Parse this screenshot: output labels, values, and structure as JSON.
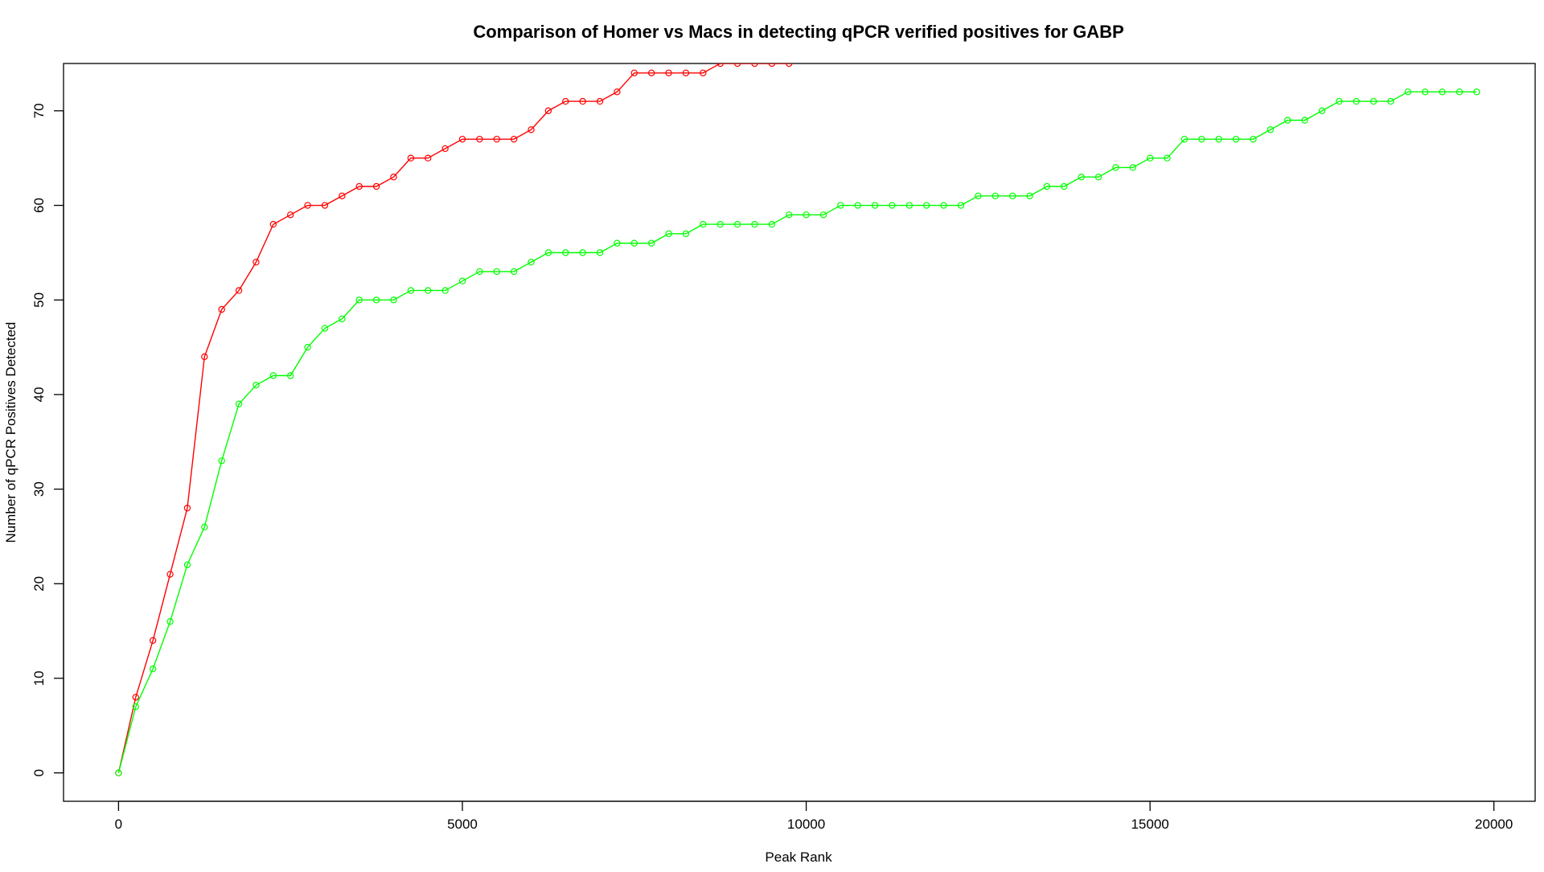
{
  "chart_data": {
    "type": "line",
    "title": "Comparison of Homer vs Macs in detecting qPCR verified positives for GABP",
    "xlabel": "Peak Rank",
    "ylabel": "Number of qPCR Positives Detected",
    "xlim": [
      -800,
      20600
    ],
    "ylim": [
      -3,
      75
    ],
    "x_ticks": [
      0,
      5000,
      10000,
      15000,
      20000
    ],
    "y_ticks": [
      0,
      10,
      20,
      30,
      40,
      50,
      60,
      70
    ],
    "grid": false,
    "legend": "none",
    "colors": [
      "#ff0000",
      "#00ff00"
    ],
    "series": [
      {
        "color": "#ff0000",
        "x": [
          0,
          250,
          500,
          750,
          1000,
          1250,
          1500,
          1750,
          2000,
          2250,
          2500,
          2750,
          3000,
          3250,
          3500,
          3750,
          4000,
          4250,
          4500,
          4750,
          5000,
          5250,
          5500,
          5750,
          6000,
          6250,
          6500,
          6750,
          7000,
          7250,
          7500,
          7750,
          8000,
          8250,
          8500,
          8750,
          9000,
          9250,
          9500,
          9750
        ],
        "y": [
          0,
          8,
          14,
          21,
          28,
          44,
          49,
          51,
          54,
          58,
          59,
          60,
          60,
          61,
          62,
          62,
          63,
          65,
          65,
          66,
          67,
          67,
          67,
          67,
          68,
          70,
          71,
          71,
          71,
          72,
          74,
          74,
          74,
          74,
          74,
          75,
          75,
          75,
          75,
          75
        ]
      },
      {
        "color": "#00ff00",
        "x": [
          0,
          250,
          500,
          750,
          1000,
          1250,
          1500,
          1750,
          2000,
          2250,
          2500,
          2750,
          3000,
          3250,
          3500,
          3750,
          4000,
          4250,
          4500,
          4750,
          5000,
          5250,
          5500,
          5750,
          6000,
          6250,
          6500,
          6750,
          7000,
          7250,
          7500,
          7750,
          8000,
          8250,
          8500,
          8750,
          9000,
          9250,
          9500,
          9750,
          10000,
          10250,
          10500,
          10750,
          11000,
          11250,
          11500,
          11750,
          12000,
          12250,
          12500,
          12750,
          13000,
          13250,
          13500,
          13750,
          14000,
          14250,
          14500,
          14750,
          15000,
          15250,
          15500,
          15750,
          16000,
          16250,
          16500,
          16750,
          17000,
          17250,
          17500,
          17750,
          18000,
          18250,
          18500,
          18750,
          19000,
          19250,
          19500,
          19750
        ],
        "y": [
          0,
          7,
          11,
          16,
          22,
          26,
          33,
          39,
          41,
          42,
          42,
          45,
          47,
          48,
          50,
          50,
          50,
          51,
          51,
          51,
          52,
          53,
          53,
          53,
          54,
          55,
          55,
          55,
          55,
          56,
          56,
          56,
          57,
          57,
          58,
          58,
          58,
          58,
          58,
          59,
          59,
          59,
          60,
          60,
          60,
          60,
          60,
          60,
          60,
          60,
          61,
          61,
          61,
          61,
          62,
          62,
          63,
          63,
          64,
          64,
          65,
          65,
          67,
          67,
          67,
          67,
          67,
          68,
          69,
          69,
          70,
          71,
          71,
          71,
          71,
          72,
          72,
          72,
          72,
          72
        ]
      }
    ]
  }
}
